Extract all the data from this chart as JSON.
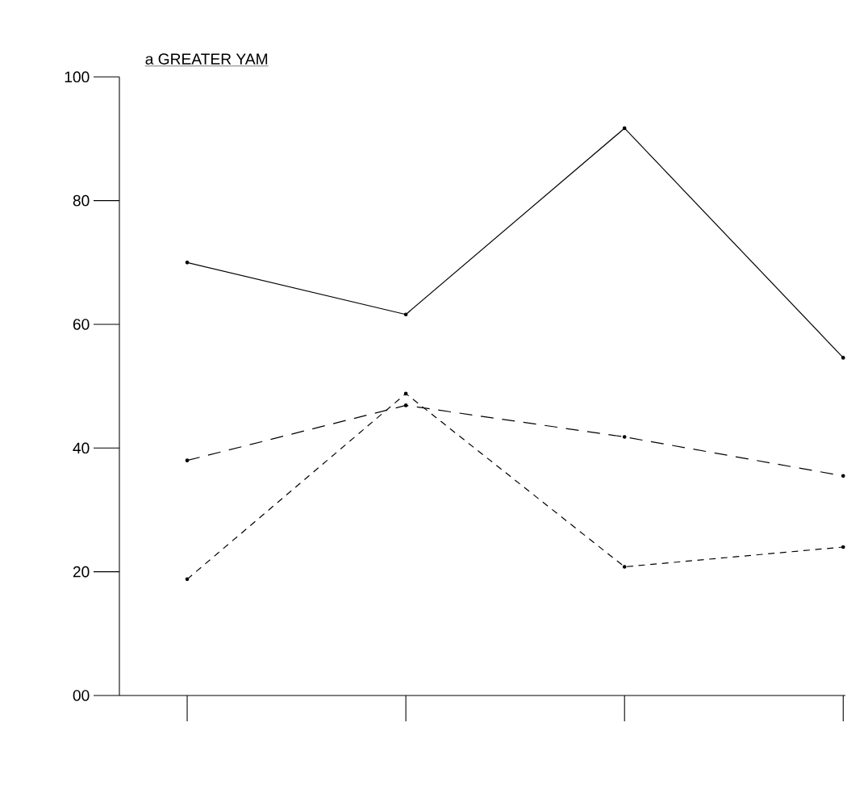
{
  "chart_data": {
    "type": "line",
    "title": "a GREATER YAM",
    "categories": [
      null,
      null,
      null,
      null
    ],
    "series": [
      {
        "color": "#000000",
        "line_style": "solid",
        "values": [
          70.0,
          61.6,
          91.7,
          54.6
        ]
      },
      {
        "color": "#000000",
        "line_style": "dashed",
        "values": [
          38.0,
          46.9,
          41.8,
          35.5
        ]
      },
      {
        "color": "#000000",
        "line_style": "dashed",
        "values": [
          18.8,
          48.8,
          20.8,
          24.0
        ]
      }
    ],
    "ylim": [
      0,
      100
    ],
    "yticks": [
      {
        "value": 0,
        "label": "00"
      },
      20,
      40,
      60,
      80,
      100
    ],
    "marker": "circle",
    "grid": false,
    "legend": false
  }
}
